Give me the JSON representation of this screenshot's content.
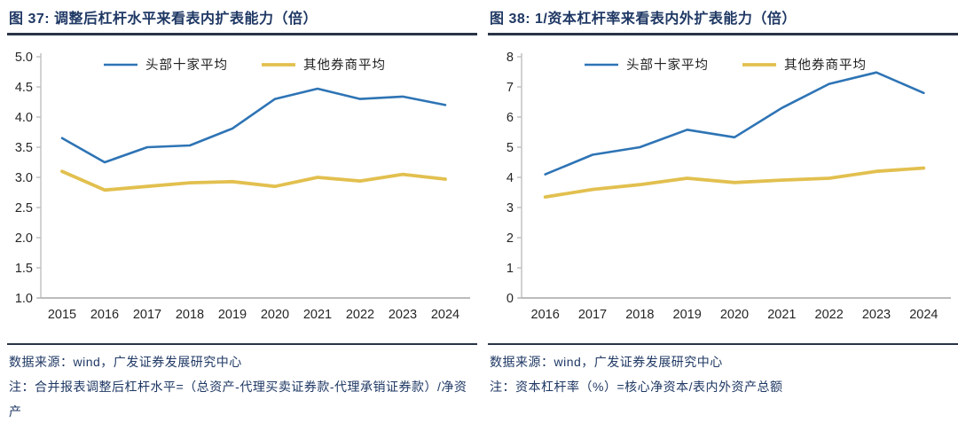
{
  "colors": {
    "navy": "#1F3864",
    "blue": "#2E74B5",
    "yellow": "#E2C04F",
    "axis_y": "#BFBFBF",
    "axis_x": "#A6A6A6",
    "tick_text": "#262626",
    "legend_text": "#1F1F1F",
    "rule": "#2A3447"
  },
  "panels": [
    {
      "title": "图 37: 调整后杠杆水平来看表内扩表能力（倍）",
      "source": "数据来源：wind，广发证券发展研究中心",
      "note": "注：合并报表调整后杠杆水平=（总资产-代理买卖证券款-代理承销证券款）/净资产"
    },
    {
      "title": "图 38: 1/资本杠杆率来看表内外扩表能力（倍）",
      "source": "数据来源：wind，广发证券发展研究中心",
      "note": "注：资本杠杆率（%）=核心净资本/表内外资产总额"
    }
  ],
  "chart_data": [
    {
      "type": "line",
      "title": "调整后杠杆水平来看表内扩表能力（倍）",
      "categories": [
        "2015",
        "2016",
        "2017",
        "2018",
        "2019",
        "2020",
        "2021",
        "2022",
        "2023",
        "2024"
      ],
      "series": [
        {
          "name": "头部十家平均",
          "color": "#2E74B5",
          "width": 2.6,
          "values": [
            3.65,
            3.25,
            3.5,
            3.53,
            3.81,
            4.3,
            4.47,
            4.3,
            4.34,
            4.2
          ]
        },
        {
          "name": "其他券商平均",
          "color": "#E2C04F",
          "width": 3.8,
          "values": [
            3.1,
            2.79,
            2.85,
            2.91,
            2.93,
            2.85,
            3.0,
            2.94,
            3.05,
            2.97
          ]
        }
      ],
      "ylim": [
        1.0,
        5.0
      ],
      "ytick_step": 0.5,
      "ytick_decimals": 1,
      "legend_position": "top",
      "grid": false
    },
    {
      "type": "line",
      "title": "1/资本杠杆率来看表内外扩表能力（倍）",
      "categories": [
        "2016",
        "2017",
        "2018",
        "2019",
        "2020",
        "2021",
        "2022",
        "2023",
        "2024"
      ],
      "series": [
        {
          "name": "头部十家平均",
          "color": "#2E74B5",
          "width": 2.6,
          "values": [
            4.1,
            4.75,
            5.0,
            5.58,
            5.33,
            6.3,
            7.1,
            7.48,
            6.8
          ]
        },
        {
          "name": "其他券商平均",
          "color": "#E2C04F",
          "width": 3.8,
          "values": [
            3.35,
            3.6,
            3.76,
            3.97,
            3.83,
            3.91,
            3.97,
            4.2,
            4.31
          ]
        }
      ],
      "ylim": [
        0,
        8
      ],
      "ytick_step": 1,
      "ytick_decimals": 0,
      "legend_position": "top",
      "grid": false
    }
  ]
}
